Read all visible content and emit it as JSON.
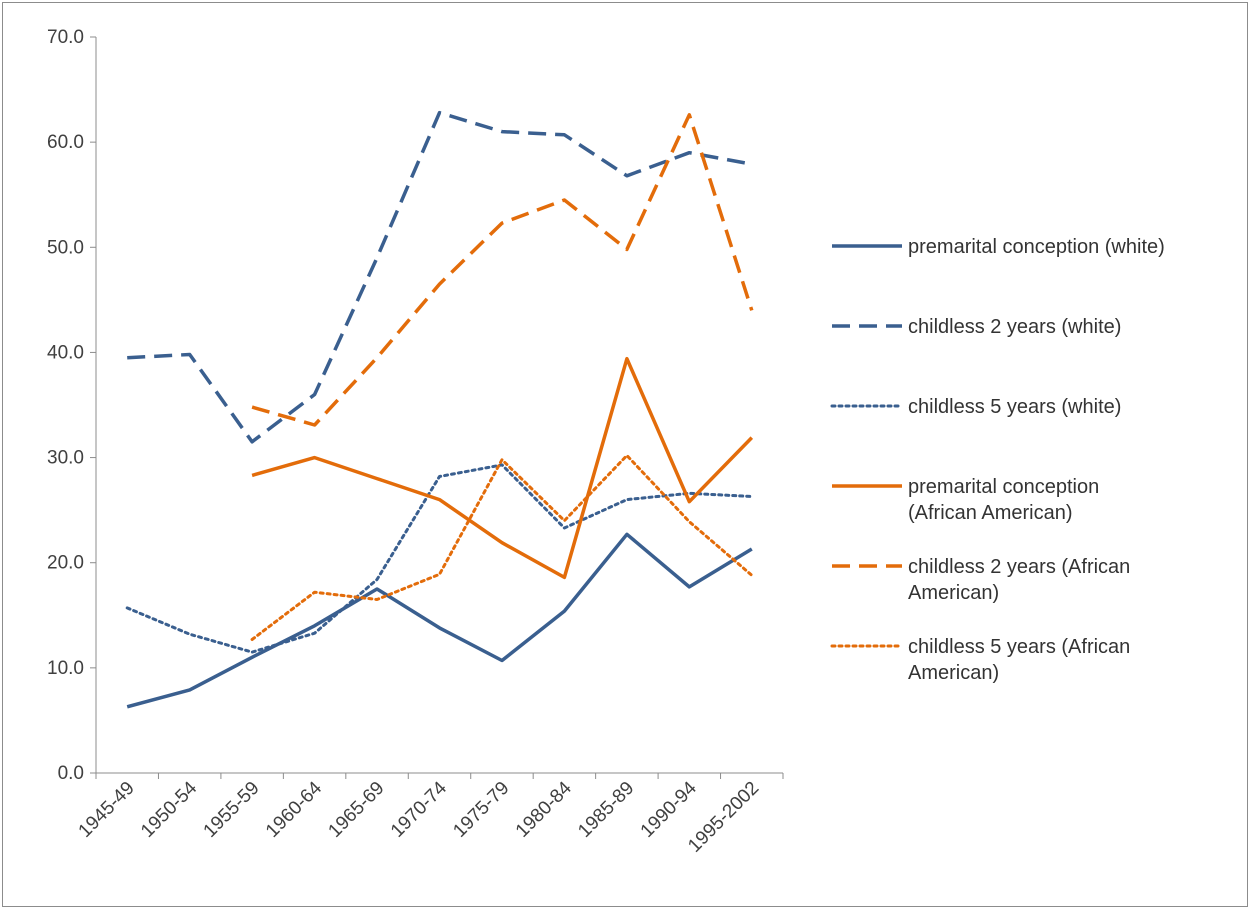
{
  "chart_data": {
    "type": "line",
    "title": "",
    "xlabel": "",
    "ylabel": "",
    "ylim": [
      0,
      70
    ],
    "yticks": [
      "0.0",
      "10.0",
      "20.0",
      "30.0",
      "40.0",
      "50.0",
      "60.0",
      "70.0"
    ],
    "categories": [
      "1945-49",
      "1950-54",
      "1955-59",
      "1960-64",
      "1965-69",
      "1970-74",
      "1975-79",
      "1980-84",
      "1985-89",
      "1990-94",
      "1995-2002"
    ],
    "grid": false,
    "legend_position": "right",
    "series": [
      {
        "name": "premarital conception (white)",
        "color": "#3a5f8f",
        "dash": "solid",
        "legend_lines": [
          "premarital conception (white)"
        ],
        "values": [
          6.3,
          7.9,
          11.0,
          14.0,
          17.5,
          13.8,
          10.7,
          15.4,
          22.7,
          17.7,
          21.3
        ]
      },
      {
        "name": "childless 2 years (white)",
        "color": "#3a5f8f",
        "dash": "dashed",
        "legend_lines": [
          "childless 2 years (white)"
        ],
        "values": [
          39.5,
          39.8,
          31.5,
          36.0,
          49.0,
          62.8,
          61.0,
          60.7,
          56.8,
          59.0,
          57.9
        ]
      },
      {
        "name": "childless 5 years (white)",
        "color": "#3a5f8f",
        "dash": "dotted",
        "legend_lines": [
          "childless 5 years (white)"
        ],
        "values": [
          15.7,
          13.2,
          11.5,
          13.3,
          18.4,
          28.2,
          29.3,
          23.3,
          26.0,
          26.6,
          26.3
        ]
      },
      {
        "name": "premarital conception (African American)",
        "color": "#e36c0a",
        "dash": "solid",
        "legend_lines": [
          "premarital conception",
          "(African American)"
        ],
        "values": [
          null,
          null,
          28.3,
          30.0,
          28.0,
          26.0,
          21.9,
          18.6,
          39.4,
          25.8,
          31.9
        ]
      },
      {
        "name": "childless 2 years (African American)",
        "color": "#e36c0a",
        "dash": "dashed",
        "legend_lines": [
          "childless 2 years (African",
          "American)"
        ],
        "values": [
          null,
          null,
          34.8,
          33.1,
          39.5,
          46.5,
          52.3,
          54.5,
          49.8,
          62.6,
          44.0
        ]
      },
      {
        "name": "childless 5 years (African American)",
        "color": "#e36c0a",
        "dash": "dotted",
        "legend_lines": [
          "childless 5 years (African",
          "American)"
        ],
        "values": [
          null,
          null,
          12.7,
          17.2,
          16.5,
          18.9,
          29.8,
          24.0,
          30.2,
          23.9,
          18.8
        ]
      }
    ]
  }
}
